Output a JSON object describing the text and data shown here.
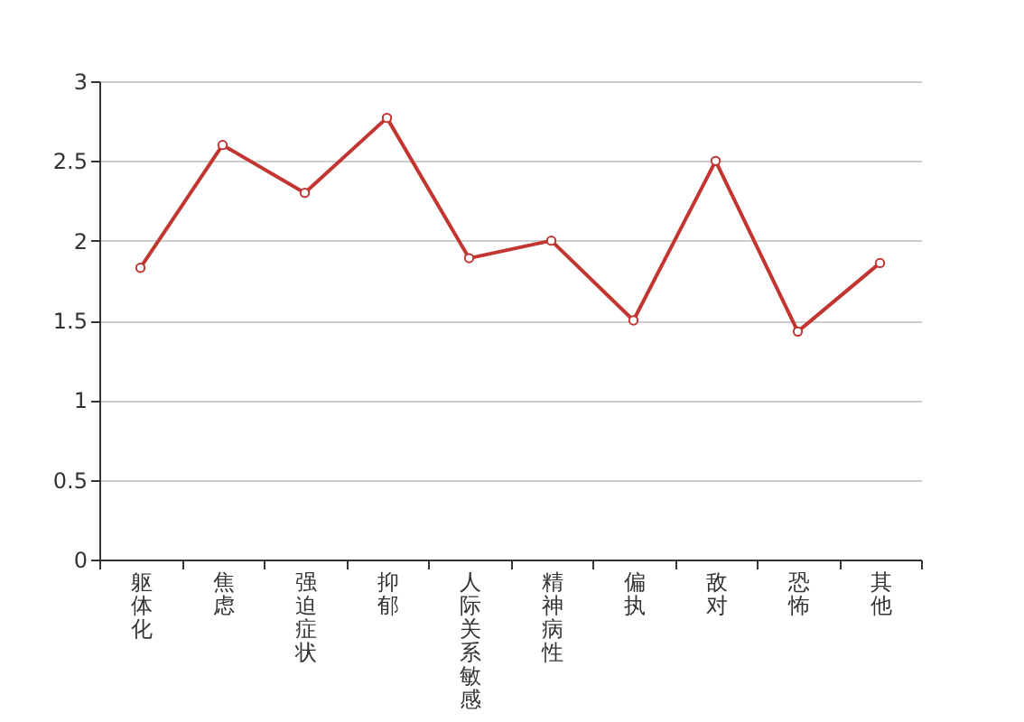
{
  "chart_data": {
    "type": "line",
    "categories": [
      "躯体化",
      "焦虑",
      "强迫症状",
      "抑郁",
      "人际关系敏感",
      "精神病性",
      "偏执",
      "敌对",
      "恐怖",
      "其他"
    ],
    "series": [
      {
        "color": "#c23531",
        "values": [
          1.83,
          2.6,
          2.3,
          2.77,
          1.89,
          2.0,
          1.5,
          2.5,
          1.43,
          1.86
        ]
      }
    ],
    "ylim": [
      0,
      3
    ],
    "yticks": [
      0,
      0.5,
      1,
      1.5,
      2,
      2.5,
      3
    ],
    "grid": "y",
    "marker": "circle",
    "line_style": "solid"
  }
}
